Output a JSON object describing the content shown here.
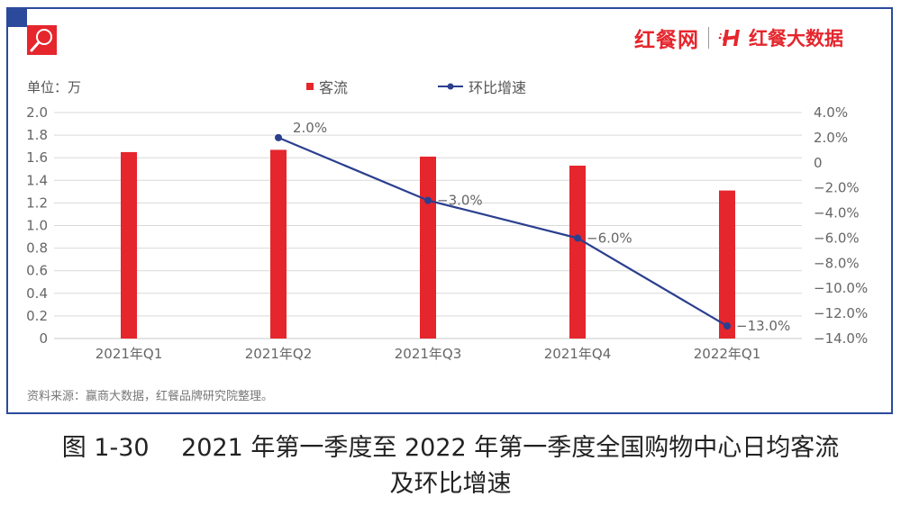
{
  "brand": {
    "logo_primary": "红餐网",
    "logo_secondary": "红餐大数据",
    "logo_mark": "H"
  },
  "icons": {
    "search_badge": "search-icon"
  },
  "unit_label": "单位：万",
  "legend": {
    "bar_label": "客流",
    "line_label": "环比增速"
  },
  "colors": {
    "frame": "#2b4a9b",
    "bar": "#e5262d",
    "line": "#2b3f8f",
    "grid": "#d9d9d9",
    "axis_text": "#666666"
  },
  "source_note": "资料来源：赢商大数据，红餐品牌研究院整理。",
  "caption": {
    "line1": "图 1-30　 2021 年第一季度至 2022 年第一季度全国购物中心日均客流",
    "line2": "及环比增速"
  },
  "watermark_text": "红餐大数据",
  "chart_data": {
    "type": "bar",
    "title": "2021年第一季度至2022年第一季度全国购物中心日均客流及环比增速",
    "xlabel": "",
    "ylabel": "单位：万",
    "categories": [
      "2021年Q1",
      "2021年Q2",
      "2021年Q3",
      "2021年Q4",
      "2022年Q1"
    ],
    "series": [
      {
        "name": "客流",
        "type": "bar",
        "axis": "left",
        "values": [
          1.65,
          1.67,
          1.61,
          1.53,
          1.31
        ]
      },
      {
        "name": "环比增速",
        "type": "line",
        "axis": "right",
        "values": [
          null,
          2.0,
          -3.0,
          -6.0,
          -13.0
        ],
        "labels": [
          "",
          "2.0%",
          "−3.0%",
          "−6.0%",
          "−13.0%"
        ]
      }
    ],
    "ylim": [
      0,
      2.0
    ],
    "y_ticks": [
      "0",
      "0.2",
      "0.4",
      "0.6",
      "0.8",
      "1.0",
      "1.2",
      "1.4",
      "1.6",
      "1.8",
      "2.0"
    ],
    "y2lim": [
      -14.0,
      4.0
    ],
    "y2_ticks": [
      "−14.0%",
      "−12.0%",
      "−10.0%",
      "−8.0%",
      "−6.0%",
      "−4.0%",
      "−2.0%",
      "0",
      "2.0%",
      "4.0%"
    ],
    "grid": true,
    "legend_position": "top"
  }
}
